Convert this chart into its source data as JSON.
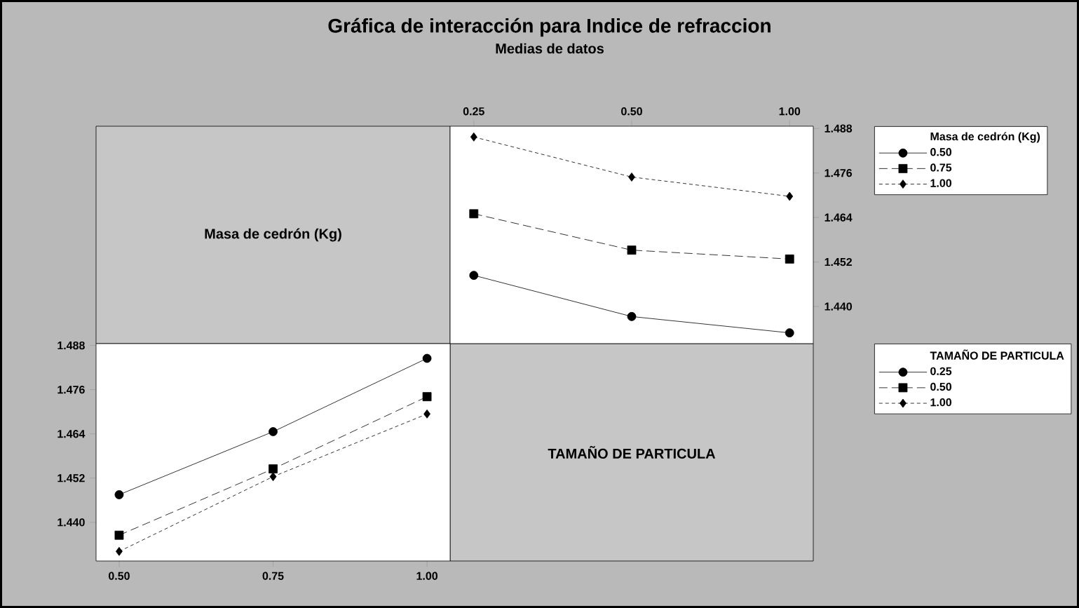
{
  "chart_data": [
    {
      "type": "other",
      "title": "Gráfica de interacción para Indice de refraccion",
      "subtitle": "Medias de datos",
      "annotations": [
        "Masa de cedrón (Kg)"
      ]
    },
    {
      "type": "line",
      "categories": [
        "0.25",
        "0.50",
        "1.00"
      ],
      "ylim": [
        1.43,
        1.4886
      ],
      "yticks": [
        {
          "value": 1.44,
          "label": "1.440"
        },
        {
          "value": 1.452,
          "label": "1.452"
        },
        {
          "value": 1.464,
          "label": "1.464"
        },
        {
          "value": 1.476,
          "label": "1.476"
        },
        {
          "value": 1.488,
          "label": "1.488"
        }
      ],
      "legend": "right",
      "legend_title": "Masa de cedrón (Kg)",
      "series": [
        {
          "name": "0.50",
          "color": "#000000",
          "marker": "circle",
          "line_style": "solid",
          "values": [
            1.4484,
            1.4373,
            1.4329
          ]
        },
        {
          "name": "0.75",
          "color": "#000000",
          "marker": "square",
          "line_style": "dashed",
          "values": [
            1.465,
            1.4552,
            1.4528
          ]
        },
        {
          "name": "1.00",
          "color": "#000000",
          "marker": "diamond",
          "line_style": "dotted",
          "values": [
            1.4857,
            1.4749,
            1.4697
          ]
        }
      ]
    },
    {
      "type": "line",
      "categories": [
        "0.50",
        "0.75",
        "1.00"
      ],
      "ylim": [
        1.4295,
        1.4885
      ],
      "yticks": [
        {
          "value": 1.44,
          "label": "1.440"
        },
        {
          "value": 1.452,
          "label": "1.452"
        },
        {
          "value": 1.464,
          "label": "1.464"
        },
        {
          "value": 1.476,
          "label": "1.476"
        },
        {
          "value": 1.488,
          "label": "1.488"
        }
      ],
      "legend": "right",
      "legend_title": "TAMAÑO DE PARTICULA",
      "series": [
        {
          "name": "0.25",
          "color": "#000000",
          "marker": "circle",
          "line_style": "solid",
          "values": [
            1.4475,
            1.4646,
            1.4845
          ]
        },
        {
          "name": "0.50",
          "color": "#000000",
          "marker": "square",
          "line_style": "dashed",
          "values": [
            1.4365,
            1.4545,
            1.4741
          ]
        },
        {
          "name": "1.00",
          "color": "#000000",
          "marker": "diamond",
          "line_style": "dotted",
          "values": [
            1.4321,
            1.4524,
            1.4694
          ]
        }
      ]
    },
    {
      "type": "other",
      "annotations": [
        "TAMAÑO DE PARTICULA"
      ]
    }
  ]
}
